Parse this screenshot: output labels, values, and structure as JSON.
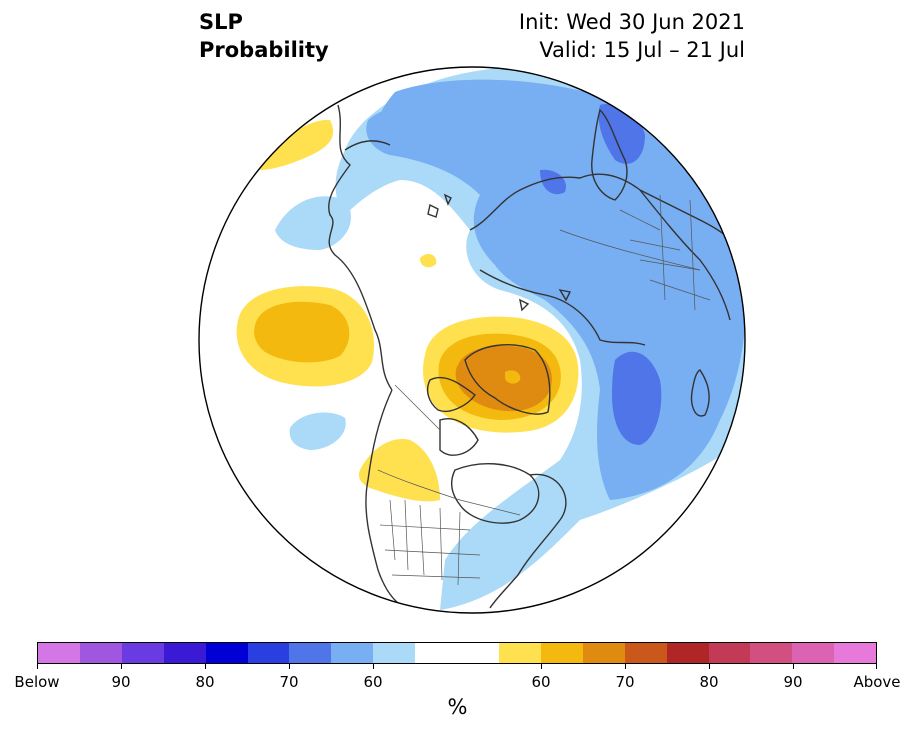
{
  "title": {
    "line1": "SLP",
    "line2": "Probability",
    "init": "Init: Wed 30 Jun 2021",
    "valid": "Valid: 15 Jul – 21 Jul"
  },
  "colorbar": {
    "colors": [
      "#d476e6",
      "#a156e0",
      "#6a3be0",
      "#3b1ad6",
      "#0000d6",
      "#2a3fe0",
      "#4f75e8",
      "#78aef2",
      "#abdaf8",
      "#ffffff",
      "#ffffff",
      "#ffe150",
      "#f3b90e",
      "#df8b12",
      "#c9581a",
      "#b02525",
      "#c23a55",
      "#d2507f",
      "#dc62b2",
      "#e779da"
    ],
    "labels": [
      "Below",
      "90",
      "80",
      "70",
      "60",
      "60",
      "70",
      "80",
      "90",
      "Above"
    ],
    "unit": "%"
  },
  "map": {
    "projection": "north-polar-stereographic",
    "variable": "Sea-level pressure tercile probability",
    "colors": {
      "above_50": "#ffe150",
      "above_60": "#f3b90e",
      "above_70": "#df8b12",
      "below_50": "#abdaf8",
      "below_60": "#78aef2",
      "below_70": "#4f75e8",
      "neutral": "#ffffff",
      "coastline": "#333333"
    }
  }
}
